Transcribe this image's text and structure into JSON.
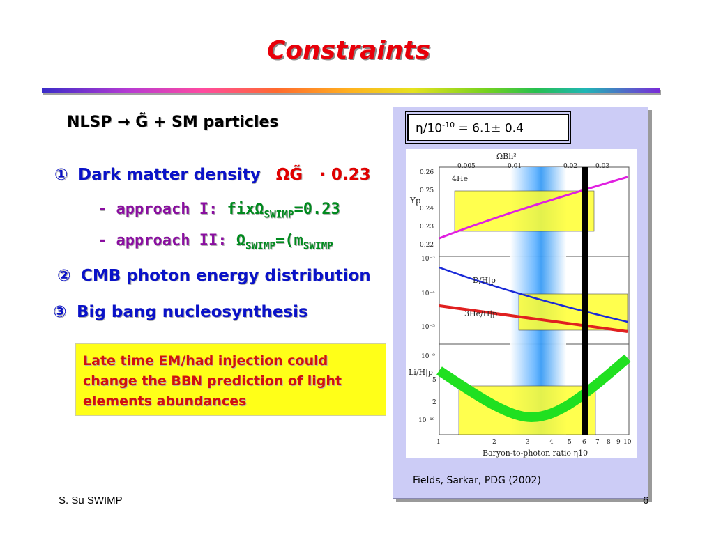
{
  "slide": {
    "title": "Constraints",
    "nlsp_line": {
      "prefix": "NLSP",
      "arrow": "→",
      "gravitino": "G̃",
      "suffix": "+ SM particles"
    },
    "bullet1": {
      "number": "①",
      "text": "Dark matter density",
      "omega": "ΩG̃",
      "value": "· 0.23"
    },
    "approach1": {
      "dash": "- approach",
      "label": "I:",
      "text": "fix",
      "omega": "Ω",
      "sub": "SWIMP",
      "value": "=0.23"
    },
    "approach2": {
      "dash": "- approach",
      "label": "II:",
      "omega": "Ω",
      "sub": "SWIMP",
      "value": "=(m",
      "sub2": "SWIMP"
    },
    "bullet2": {
      "number": "②",
      "text": "CMB photon energy distribution"
    },
    "bullet3": {
      "number": "③",
      "text": "Big bang nucleosynthesis"
    },
    "note": "Late time EM/had injection could change the BBN prediction of light elements abundances",
    "footer": "S. Su  SWIMP",
    "page_number": "6"
  },
  "panel": {
    "eta_label": "η/10",
    "eta_exp": "-10",
    "eta_value": " = 6.1± 0.4",
    "caption": "Fields, Sarkar, PDG (2002)",
    "plot": {
      "top_axis_label": "ΩBh²",
      "top_ticks": [
        "0.005",
        "0.01",
        "0.02",
        "0.03"
      ],
      "bottom_axis_label": "Baryon-to-photon ratio η10",
      "bottom_ticks": [
        "1",
        "2",
        "3",
        "4",
        "5",
        "6",
        "7",
        "8",
        "9",
        "10"
      ],
      "yp_label": "Yp",
      "yp_ticks": [
        "0.26",
        "0.25",
        "0.24",
        "0.23",
        "0.22"
      ],
      "he4_label": "4He",
      "dh_label": "D/H|p",
      "he3_label": "3He/H|p",
      "li_label": "Li/H|p",
      "mid_ticks": [
        "10⁻³",
        "10⁻⁴",
        "10⁻⁵"
      ],
      "low_ticks": [
        "10⁻⁹",
        "5",
        "2",
        "10⁻¹⁰"
      ]
    }
  },
  "colors": {
    "title": "#e8000a",
    "bullet": "#0a12c8",
    "approach": "#8a0ea0",
    "highlight_green": "#008a1e",
    "note_bg": "#ffff18",
    "note_text": "#d01010",
    "panel_bg": "#ccccf6"
  }
}
